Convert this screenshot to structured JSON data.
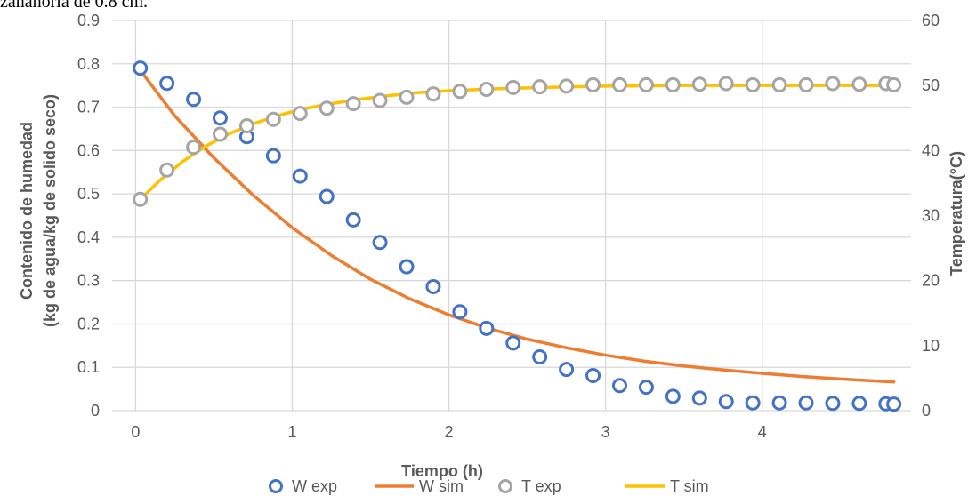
{
  "caption_fragment": "zanahoria de 0.8 cm.",
  "chart_data": {
    "type": "line",
    "xlabel": "Tiempo (h)",
    "ylabel_left_line1": "Contenido de humedad",
    "ylabel_left_line2": "(kg de agua/kg de solido seco)",
    "ylabel_right": "Temperatura(°C)",
    "xlim": [
      -0.15,
      4.95
    ],
    "ylim_left": [
      0,
      0.9
    ],
    "ylim_right": [
      0,
      60
    ],
    "x_ticks": [
      "0",
      "1",
      "2",
      "3",
      "4"
    ],
    "y_left_ticks": [
      "0",
      "0.1",
      "0.2",
      "0.3",
      "0.4",
      "0.5",
      "0.6",
      "0.7",
      "0.8",
      "0.9"
    ],
    "y_right_ticks": [
      "0",
      "10",
      "20",
      "30",
      "40",
      "50",
      "60"
    ],
    "grid": true,
    "legend_position": "bottom",
    "series": [
      {
        "name": "W exp",
        "kind": "markers",
        "axis": "left",
        "color": "#4472C4",
        "x": [
          0.03,
          0.2,
          0.37,
          0.54,
          0.71,
          0.88,
          1.05,
          1.22,
          1.39,
          1.56,
          1.73,
          1.9,
          2.07,
          2.24,
          2.41,
          2.58,
          2.75,
          2.92,
          3.09,
          3.26,
          3.43,
          3.6,
          3.77,
          3.94,
          4.11,
          4.28,
          4.45,
          4.62,
          4.79,
          4.84
        ],
        "y": [
          0.79,
          0.755,
          0.718,
          0.675,
          0.632,
          0.588,
          0.541,
          0.494,
          0.44,
          0.388,
          0.332,
          0.286,
          0.228,
          0.19,
          0.156,
          0.124,
          0.095,
          0.081,
          0.058,
          0.054,
          0.033,
          0.029,
          0.021,
          0.018,
          0.018,
          0.018,
          0.017,
          0.017,
          0.016,
          0.015
        ]
      },
      {
        "name": "W sim",
        "kind": "line",
        "axis": "left",
        "color": "#ED7D31",
        "x": [
          0.03,
          0.25,
          0.5,
          0.75,
          1.0,
          1.25,
          1.5,
          1.75,
          2.0,
          2.25,
          2.5,
          2.75,
          3.0,
          3.25,
          3.5,
          3.75,
          4.0,
          4.25,
          4.5,
          4.75,
          4.84
        ],
        "y": [
          0.785,
          0.68,
          0.583,
          0.497,
          0.422,
          0.358,
          0.303,
          0.258,
          0.221,
          0.19,
          0.165,
          0.145,
          0.128,
          0.114,
          0.103,
          0.094,
          0.086,
          0.079,
          0.073,
          0.068,
          0.066
        ]
      },
      {
        "name": "T exp",
        "kind": "markers",
        "axis": "right",
        "color": "#A5A5A5",
        "x": [
          0.03,
          0.2,
          0.37,
          0.54,
          0.71,
          0.88,
          1.05,
          1.22,
          1.39,
          1.56,
          1.73,
          1.9,
          2.07,
          2.24,
          2.41,
          2.58,
          2.75,
          2.92,
          3.09,
          3.26,
          3.43,
          3.6,
          3.77,
          3.94,
          4.11,
          4.28,
          4.45,
          4.62,
          4.79,
          4.84
        ],
        "y": [
          32.5,
          37.0,
          40.5,
          42.5,
          43.8,
          44.8,
          45.7,
          46.5,
          47.2,
          47.7,
          48.2,
          48.7,
          49.1,
          49.4,
          49.7,
          49.8,
          49.9,
          50.1,
          50.1,
          50.1,
          50.1,
          50.2,
          50.3,
          50.1,
          50.1,
          50.1,
          50.3,
          50.2,
          50.3,
          50.1
        ]
      },
      {
        "name": "T sim",
        "kind": "line",
        "axis": "right",
        "color": "#FFC000",
        "x": [
          0.03,
          0.15,
          0.3,
          0.45,
          0.6,
          0.75,
          0.9,
          1.05,
          1.2,
          1.4,
          1.6,
          1.8,
          2.0,
          2.3,
          2.6,
          3.0,
          3.5,
          4.0,
          4.5,
          4.84
        ],
        "y": [
          32.5,
          35.3,
          38.3,
          40.7,
          42.6,
          44.1,
          45.3,
          46.3,
          47.0,
          47.8,
          48.4,
          48.9,
          49.2,
          49.5,
          49.7,
          49.9,
          50.0,
          50.0,
          50.0,
          50.0
        ]
      }
    ]
  }
}
